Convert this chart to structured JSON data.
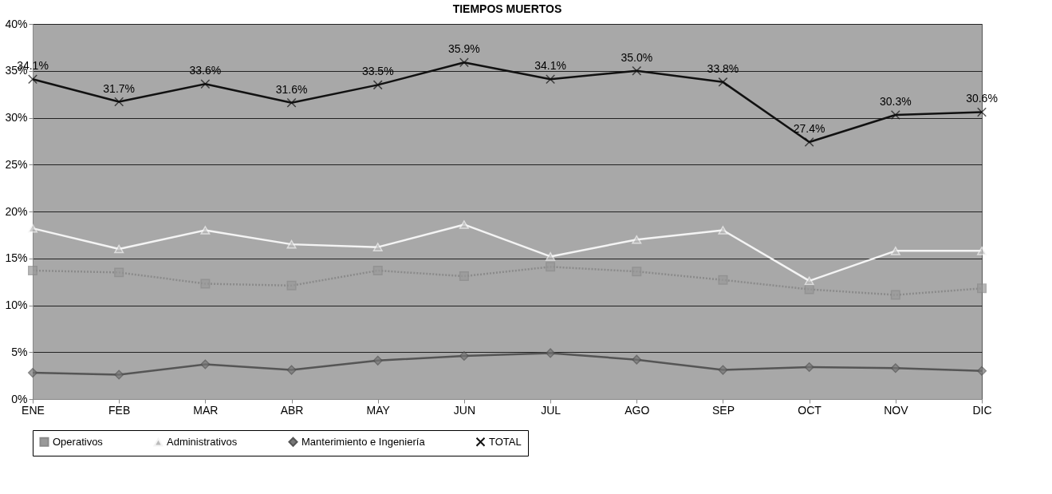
{
  "chart_data": {
    "type": "line",
    "title": "TIEMPOS MUERTOS",
    "categories": [
      "ENE",
      "FEB",
      "MAR",
      "ABR",
      "MAY",
      "JUN",
      "JUL",
      "AGO",
      "SEP",
      "OCT",
      "NOV",
      "DIC"
    ],
    "series": [
      {
        "name": "Operativos",
        "color": "#8a8a8a",
        "marker": "square",
        "line_style": "dotted",
        "values": [
          13.7,
          13.5,
          12.3,
          12.1,
          13.7,
          13.1,
          14.1,
          13.6,
          12.7,
          11.7,
          11.1,
          11.8
        ]
      },
      {
        "name": "Administrativos",
        "color": "#f4f4f4",
        "marker": "triangle",
        "line_style": "solid",
        "values": [
          18.2,
          16.0,
          18.0,
          16.5,
          16.2,
          18.6,
          15.2,
          17.0,
          18.0,
          12.6,
          15.8,
          15.8
        ]
      },
      {
        "name": "Manterimiento e Ingeniería",
        "color": "#555555",
        "marker": "diamond",
        "line_style": "solid",
        "values": [
          2.8,
          2.6,
          3.7,
          3.1,
          4.1,
          4.6,
          4.9,
          4.2,
          3.1,
          3.4,
          3.3,
          3.0
        ]
      },
      {
        "name": "TOTAL",
        "color": "#111111",
        "marker": "cross",
        "line_style": "solid",
        "values": [
          34.1,
          31.7,
          33.6,
          31.6,
          33.5,
          35.9,
          34.1,
          35.0,
          33.8,
          27.4,
          30.3,
          30.6
        ],
        "value_labels": [
          "34.1%",
          "31.7%",
          "33.6%",
          "31.6%",
          "33.5%",
          "35.9%",
          "34.1%",
          "35.0%",
          "33.8%",
          "27.4%",
          "30.3%",
          "30.6%"
        ]
      }
    ],
    "ylim": [
      0,
      40
    ],
    "yticks": [
      {
        "value": 0,
        "label": "0%"
      },
      {
        "value": 5,
        "label": "5%"
      },
      {
        "value": 10,
        "label": "10%"
      },
      {
        "value": 15,
        "label": "15%"
      },
      {
        "value": 20,
        "label": "20%"
      },
      {
        "value": 25,
        "label": "25%"
      },
      {
        "value": 30,
        "label": "30%"
      },
      {
        "value": 35,
        "label": "35%"
      },
      {
        "value": 40,
        "label": "40%"
      }
    ],
    "grid": "y",
    "legend": "bottom"
  }
}
